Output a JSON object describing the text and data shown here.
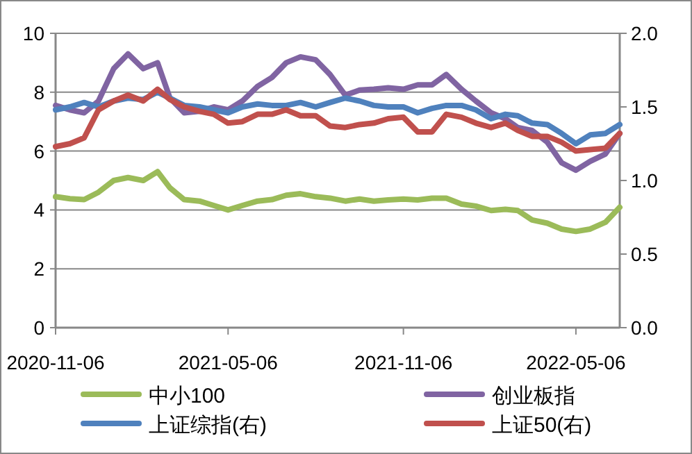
{
  "chart_data": {
    "type": "line",
    "x": [
      "2020-11-06",
      "2020-11-21",
      "2020-12-06",
      "2020-12-21",
      "2021-01-06",
      "2021-01-21",
      "2021-02-06",
      "2021-02-21",
      "2021-03-06",
      "2021-03-21",
      "2021-04-06",
      "2021-04-21",
      "2021-05-06",
      "2021-05-21",
      "2021-06-06",
      "2021-06-21",
      "2021-07-06",
      "2021-07-21",
      "2021-08-06",
      "2021-08-21",
      "2021-09-06",
      "2021-09-21",
      "2021-10-06",
      "2021-10-21",
      "2021-11-06",
      "2021-11-21",
      "2021-12-06",
      "2021-12-21",
      "2022-01-06",
      "2022-01-21",
      "2022-02-06",
      "2022-02-21",
      "2022-03-06",
      "2022-03-21",
      "2022-04-06",
      "2022-04-21",
      "2022-05-06",
      "2022-05-21",
      "2022-06-06",
      "2022-06-21"
    ],
    "xlim": [
      "2020-11-06",
      "2022-06-21"
    ],
    "xticks": [
      "2020-11-06",
      "2021-05-06",
      "2021-11-06",
      "2022-05-06"
    ],
    "ylim": [
      0,
      10
    ],
    "yticks": [
      0,
      2,
      4,
      6,
      8,
      10
    ],
    "y2lim": [
      0,
      2
    ],
    "y2ticks": [
      {
        "value": 0,
        "label": "0.0"
      },
      {
        "value": 0.5,
        "label": "0.5"
      },
      {
        "value": 1,
        "label": "1.0"
      },
      {
        "value": 1.5,
        "label": "1.5"
      },
      {
        "value": 2,
        "label": "2.0"
      }
    ],
    "grid": "y",
    "legend": "bottom",
    "series": [
      {
        "name": "中小100",
        "color": "#9bbb59",
        "values": [
          4.45,
          4.38,
          4.35,
          4.6,
          5.0,
          5.1,
          5.0,
          5.3,
          4.75,
          4.35,
          4.3,
          4.15,
          4.0,
          4.15,
          4.3,
          4.35,
          4.5,
          4.55,
          4.45,
          4.4,
          4.3,
          4.37,
          4.3,
          4.34,
          4.37,
          4.34,
          4.4,
          4.4,
          4.2,
          4.13,
          3.98,
          4.02,
          3.98,
          3.66,
          3.55,
          3.35,
          3.27,
          3.35,
          3.58,
          4.09
        ]
      },
      {
        "name": "创业板指",
        "color": "#8064a2",
        "values": [
          7.55,
          7.4,
          7.3,
          7.7,
          8.8,
          9.3,
          8.8,
          9.0,
          7.8,
          7.3,
          7.35,
          7.5,
          7.4,
          7.7,
          8.2,
          8.5,
          9.0,
          9.2,
          9.1,
          8.6,
          7.9,
          8.07,
          8.1,
          8.15,
          8.1,
          8.25,
          8.25,
          8.6,
          8.1,
          7.7,
          7.3,
          7.1,
          6.8,
          6.7,
          6.3,
          5.6,
          5.35,
          5.65,
          5.9,
          6.6
        ]
      },
      {
        "name": "上证综指(右)",
        "color": "#4f81bd",
        "axis": "y2",
        "values": [
          1.48,
          1.5,
          1.53,
          1.5,
          1.54,
          1.56,
          1.55,
          1.6,
          1.56,
          1.51,
          1.5,
          1.48,
          1.46,
          1.5,
          1.52,
          1.51,
          1.51,
          1.53,
          1.5,
          1.53,
          1.56,
          1.54,
          1.51,
          1.5,
          1.5,
          1.46,
          1.49,
          1.51,
          1.51,
          1.48,
          1.42,
          1.45,
          1.44,
          1.39,
          1.38,
          1.32,
          1.25,
          1.31,
          1.32,
          1.38
        ]
      },
      {
        "name": "上证50(右)",
        "color": "#c0504d",
        "axis": "y2",
        "values": [
          1.23,
          1.25,
          1.29,
          1.48,
          1.54,
          1.58,
          1.54,
          1.62,
          1.55,
          1.5,
          1.47,
          1.45,
          1.39,
          1.4,
          1.45,
          1.45,
          1.48,
          1.44,
          1.44,
          1.37,
          1.36,
          1.38,
          1.39,
          1.42,
          1.43,
          1.33,
          1.33,
          1.45,
          1.43,
          1.39,
          1.36,
          1.39,
          1.34,
          1.3,
          1.3,
          1.26,
          1.2,
          1.21,
          1.22,
          1.32
        ]
      }
    ]
  }
}
